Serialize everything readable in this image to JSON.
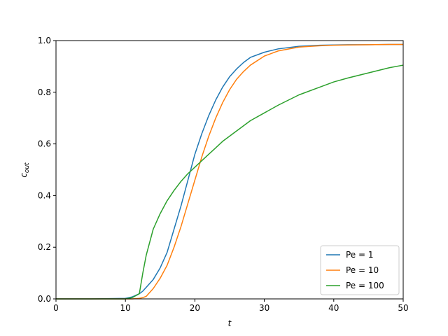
{
  "chart_data": {
    "type": "line",
    "xlabel": "t",
    "ylabel": "c",
    "ylabel_sub": "out",
    "x": [
      0,
      5,
      10,
      11,
      12,
      12.5,
      13,
      14,
      15,
      16,
      17,
      18,
      19,
      20,
      21,
      22,
      23,
      24,
      25,
      26,
      27,
      28,
      30,
      32,
      35,
      38,
      40,
      42,
      45,
      48,
      50
    ],
    "series": [
      {
        "name": "Pe = 1",
        "color": "#1f77b4",
        "values": [
          0,
          0,
          0.002,
          0.008,
          0.02,
          0.03,
          0.045,
          0.075,
          0.12,
          0.18,
          0.27,
          0.36,
          0.46,
          0.56,
          0.64,
          0.71,
          0.77,
          0.82,
          0.86,
          0.89,
          0.915,
          0.935,
          0.955,
          0.968,
          0.978,
          0.982,
          0.983,
          0.984,
          0.984,
          0.985,
          0.985
        ]
      },
      {
        "name": "Pe = 10",
        "color": "#ff7f0e",
        "values": [
          0,
          0,
          0,
          0,
          0.002,
          0.005,
          0.01,
          0.04,
          0.08,
          0.13,
          0.2,
          0.28,
          0.37,
          0.46,
          0.55,
          0.63,
          0.7,
          0.76,
          0.81,
          0.85,
          0.88,
          0.905,
          0.94,
          0.96,
          0.975,
          0.98,
          0.982,
          0.983,
          0.984,
          0.985,
          0.985
        ]
      },
      {
        "name": "Pe = 100",
        "color": "#2ca02c",
        "values": [
          0,
          0,
          0,
          0.005,
          0.02,
          0.1,
          0.17,
          0.27,
          0.33,
          0.38,
          0.42,
          0.455,
          0.485,
          0.51,
          0.535,
          0.56,
          0.585,
          0.61,
          0.63,
          0.65,
          0.67,
          0.69,
          0.72,
          0.75,
          0.79,
          0.82,
          0.84,
          0.855,
          0.875,
          0.895,
          0.905
        ]
      }
    ],
    "xlim": [
      0,
      50
    ],
    "xticks": [
      0,
      10,
      20,
      30,
      40,
      50
    ],
    "ylim": [
      0,
      1
    ],
    "yticks": [
      {
        "value": 0,
        "label": "0.0"
      },
      0.2,
      0.4,
      0.6,
      0.8,
      {
        "value": 1,
        "label": "1.0"
      }
    ],
    "legend": "lower right",
    "grid": false
  }
}
